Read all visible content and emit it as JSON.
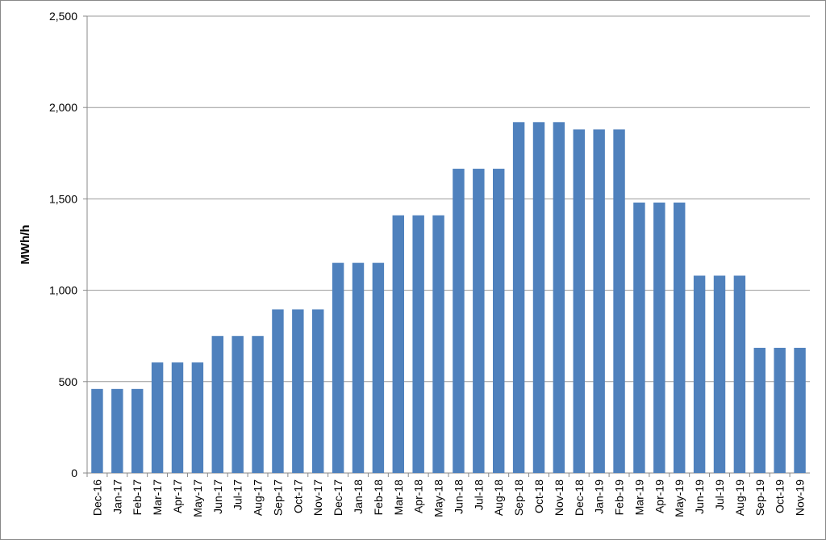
{
  "chart_data": {
    "type": "bar",
    "y_label": "MWh/h",
    "categories": [
      "Dec-16",
      "Jan-17",
      "Feb-17",
      "Mar-17",
      "Apr-17",
      "May-17",
      "Jun-17",
      "Jul-17",
      "Aug-17",
      "Sep-17",
      "Oct-17",
      "Nov-17",
      "Dec-17",
      "Jan-18",
      "Feb-18",
      "Mar-18",
      "Apr-18",
      "May-18",
      "Jun-18",
      "Jul-18",
      "Aug-18",
      "Sep-18",
      "Oct-18",
      "Nov-18",
      "Dec-18",
      "Jan-19",
      "Feb-19",
      "Mar-19",
      "Apr-19",
      "May-19",
      "Jun-19",
      "Jul-19",
      "Aug-19",
      "Sep-19",
      "Oct-19",
      "Nov-19"
    ],
    "values": [
      460,
      460,
      460,
      605,
      605,
      605,
      750,
      750,
      750,
      895,
      895,
      895,
      1150,
      1150,
      1150,
      1410,
      1410,
      1410,
      1665,
      1665,
      1665,
      1920,
      1920,
      1920,
      1880,
      1880,
      1880,
      1480,
      1480,
      1480,
      1080,
      1080,
      1080,
      685,
      685,
      685
    ],
    "color": "#4f81bd",
    "ylim": [
      0,
      2500
    ],
    "yticks": [
      0,
      500,
      {
        "value": 1000,
        "label": "1,000"
      },
      {
        "value": 1500,
        "label": "1,500"
      },
      {
        "value": 2000,
        "label": "2,000"
      },
      {
        "value": 2500,
        "label": "2,500"
      }
    ],
    "grid": true
  }
}
